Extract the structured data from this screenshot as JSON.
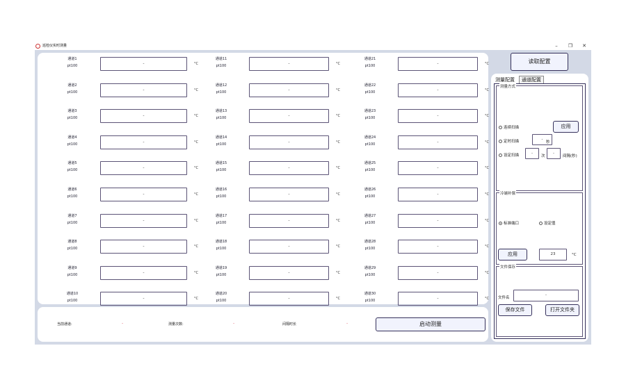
{
  "window": {
    "title": "巡检仪实时测量",
    "minimize": "–",
    "restore": "❐",
    "close": "✕"
  },
  "channels": [
    {
      "name": "通道1",
      "sensor": "pt100",
      "value": "-",
      "unit": "°C"
    },
    {
      "name": "通道2",
      "sensor": "pt100",
      "value": "-",
      "unit": "°C"
    },
    {
      "name": "通道3",
      "sensor": "pt100",
      "value": "-",
      "unit": "°C"
    },
    {
      "name": "通道4",
      "sensor": "pt100",
      "value": "-",
      "unit": "°C"
    },
    {
      "name": "通道5",
      "sensor": "pt100",
      "value": "-",
      "unit": "°C"
    },
    {
      "name": "通道6",
      "sensor": "pt100",
      "value": "-",
      "unit": "°C"
    },
    {
      "name": "通道7",
      "sensor": "pt100",
      "value": "-",
      "unit": "°C"
    },
    {
      "name": "通道8",
      "sensor": "pt100",
      "value": "-",
      "unit": "°C"
    },
    {
      "name": "通道9",
      "sensor": "pt100",
      "value": "-",
      "unit": "°C"
    },
    {
      "name": "通道10",
      "sensor": "pt100",
      "value": "-",
      "unit": "°C"
    },
    {
      "name": "通道11",
      "sensor": "pt100",
      "value": "-",
      "unit": "°C"
    },
    {
      "name": "通道12",
      "sensor": "pt100",
      "value": "-",
      "unit": "°C"
    },
    {
      "name": "通道13",
      "sensor": "pt100",
      "value": "-",
      "unit": "°C"
    },
    {
      "name": "通道14",
      "sensor": "pt100",
      "value": "-",
      "unit": "°C"
    },
    {
      "name": "通道15",
      "sensor": "pt100",
      "value": "-",
      "unit": "°C"
    },
    {
      "name": "通道16",
      "sensor": "pt100",
      "value": "-",
      "unit": "°C"
    },
    {
      "name": "通道17",
      "sensor": "pt100",
      "value": "-",
      "unit": "°C"
    },
    {
      "name": "通道18",
      "sensor": "pt100",
      "value": "-",
      "unit": "°C"
    },
    {
      "name": "通道19",
      "sensor": "pt100",
      "value": "-",
      "unit": "°C"
    },
    {
      "name": "通道20",
      "sensor": "pt100",
      "value": "-",
      "unit": "°C"
    },
    {
      "name": "通道21",
      "sensor": "pt100",
      "value": "-",
      "unit": "°C"
    },
    {
      "name": "通道22",
      "sensor": "pt100",
      "value": "-",
      "unit": "°C"
    },
    {
      "name": "通道23",
      "sensor": "pt100",
      "value": "-",
      "unit": "°C"
    },
    {
      "name": "通道24",
      "sensor": "pt100",
      "value": "-",
      "unit": "°C"
    },
    {
      "name": "通道25",
      "sensor": "pt100",
      "value": "-",
      "unit": "°C"
    },
    {
      "name": "通道26",
      "sensor": "pt100",
      "value": "-",
      "unit": "°C"
    },
    {
      "name": "通道27",
      "sensor": "pt100",
      "value": "-",
      "unit": "°C"
    },
    {
      "name": "通道28",
      "sensor": "pt100",
      "value": "-",
      "unit": "°C"
    },
    {
      "name": "通道29",
      "sensor": "pt100",
      "value": "-",
      "unit": "°C"
    },
    {
      "name": "通道30",
      "sensor": "pt100",
      "value": "-",
      "unit": "°C"
    }
  ],
  "status": {
    "current_channel_label": "当前通道:",
    "current_channel_value": "-",
    "count_label": "测量次数:",
    "count_value": "-",
    "interval_label": "间隔时长",
    "interval_value": "-",
    "start_button": "启动测量"
  },
  "config": {
    "read_button": "读取配置",
    "tabs": [
      "测量配置",
      "通道配置"
    ],
    "mode_group": "测量方式",
    "continuous": "连续扫描",
    "timed": "定时扫描",
    "timed_value": "-",
    "timed_unit": "秒",
    "set": "设定扫描",
    "set_count": "-",
    "count_unit": "次",
    "set_interval": "-",
    "interval_unit": "间隔(秒)",
    "apply": "应用",
    "cj_group": "冷端补偿",
    "cj_standard": "标准端口",
    "cj_set": "设定值",
    "cj_apply": "应用",
    "cj_value": "23",
    "cj_unit": "°C",
    "file_group": "文件保存",
    "file_label": "文件名",
    "file_value": "-",
    "save_button": "保存文件",
    "open_button": "打开文件夹"
  }
}
